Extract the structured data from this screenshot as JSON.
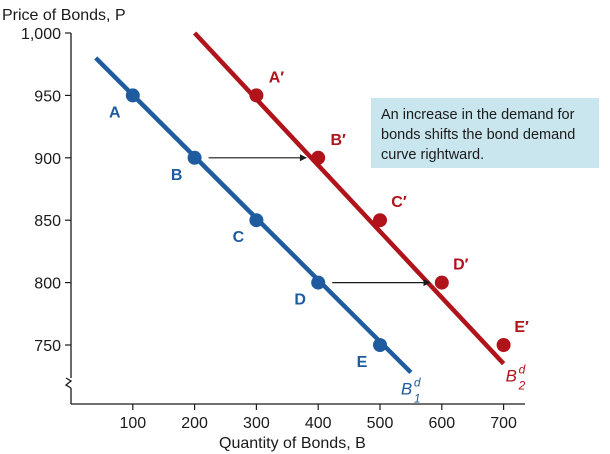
{
  "chart_data": {
    "type": "line",
    "xlabel": "Quantity of Bonds, B",
    "ylabel": "Price of Bonds, P",
    "x_ticks": [
      "100",
      "200",
      "300",
      "400",
      "500",
      "600",
      "700"
    ],
    "y_ticks": [
      "750",
      "800",
      "850",
      "900",
      "950",
      "1,000"
    ],
    "xlim": [
      0,
      740
    ],
    "ylim": [
      700,
      1000
    ],
    "axis_break": true,
    "series": [
      {
        "name_main": "B",
        "name_sup": "d",
        "name_sub": "1",
        "color": "#1f5b9f",
        "line": [
          [
            40,
            980
          ],
          [
            550,
            728
          ]
        ],
        "points": [
          {
            "label": "A",
            "x": 100,
            "y": 950
          },
          {
            "label": "B",
            "x": 200,
            "y": 900
          },
          {
            "label": "C",
            "x": 300,
            "y": 850
          },
          {
            "label": "D",
            "x": 400,
            "y": 800
          },
          {
            "label": "E",
            "x": 500,
            "y": 750
          }
        ]
      },
      {
        "name_main": "B",
        "name_sup": "d",
        "name_sub": "2",
        "color": "#b0131a",
        "line": [
          [
            200,
            1000
          ],
          [
            700,
            735
          ]
        ],
        "points": [
          {
            "label": "A′",
            "x": 300,
            "y": 950
          },
          {
            "label": "B′",
            "x": 400,
            "y": 900
          },
          {
            "label": "C′",
            "x": 500,
            "y": 850
          },
          {
            "label": "D′",
            "x": 600,
            "y": 800
          },
          {
            "label": "E′",
            "x": 700,
            "y": 750
          }
        ]
      }
    ],
    "arrows": [
      {
        "from": [
          200,
          900
        ],
        "to": [
          400,
          900
        ]
      },
      {
        "from": [
          400,
          800
        ],
        "to": [
          600,
          800
        ]
      }
    ],
    "annotation": "An increase in the demand for bonds shifts the bond demand curve rightward."
  }
}
